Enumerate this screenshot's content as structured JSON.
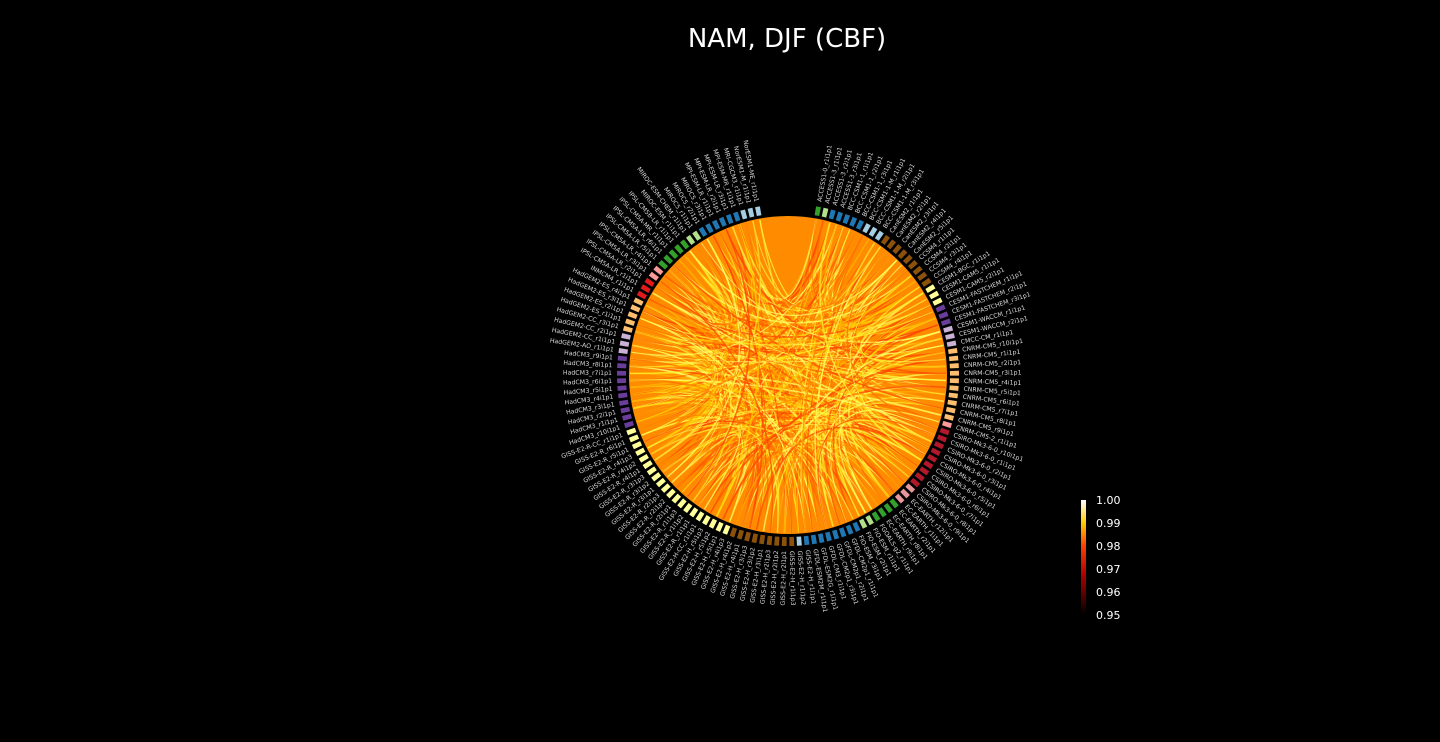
{
  "title": "NAM, DJF (CBF)",
  "chart_data": {
    "type": "chord",
    "title": "NAM, DJF (CBF)",
    "colorbar": {
      "min": 0.95,
      "max": 1.0,
      "ticks": [
        "1.00",
        "0.99",
        "0.98",
        "0.97",
        "0.96",
        "0.95"
      ],
      "colormap": "hot"
    },
    "groups": [
      {
        "color": "#33a02c",
        "members": [
          "ACCESS1-0_r1i1p1"
        ]
      },
      {
        "color": "#b2df8a",
        "members": [
          "ACCESS1-3_r1i1p1"
        ]
      },
      {
        "color": "#1f78b4",
        "members": [
          "ACCESS1-3_r2i1p1",
          "ACCESS1-3_r3i1p1",
          "BCC-CSM1-1_r1i1p1",
          "BCC-CSM1-1_r2i1p1",
          "BCC-CSM1-1_r3i1p1"
        ]
      },
      {
        "color": "#a6cee3",
        "members": [
          "BCC-CSM1-1-M_r1i1p1",
          "BCC-CSM1-1-M_r2i1p1",
          "BCC-CSM1-1-M_r3i1p1"
        ]
      },
      {
        "color": "#8c510a",
        "members": [
          "CanESM2_r1i1p1",
          "CanESM2_r2i1p1",
          "CanESM2_r3i1p1",
          "CanESM2_r4i1p1",
          "CanESM2_r5i1p1",
          "CCSM4_r1i1p1",
          "CCSM4_r2i1p1",
          "CCSM4_r3i1p1",
          "CCSM4_r4i1p1"
        ]
      },
      {
        "color": "#ffff99",
        "members": [
          "CESM1-BGC_r1i1p1",
          "CESM1-CAM5_r1i1p1",
          "CESM1-CAM5_r2i1p1"
        ]
      },
      {
        "color": "#6a3d9a",
        "members": [
          "CESM1-FASTCHEM_r1i1p1",
          "CESM1-FASTCHEM_r2i1p1",
          "CESM1-FASTCHEM_r3i1p1"
        ]
      },
      {
        "color": "#cab2d6",
        "members": [
          "CESM1-WACCM_r1i1p1",
          "CESM1-WACCM_r2i1p1",
          "CMCC-CM_r1i1p1"
        ]
      },
      {
        "color": "#fdbf6f",
        "members": [
          "CNRM-CM5_r10i1p1",
          "CNRM-CM5_r1i1p1",
          "CNRM-CM5_r2i1p1",
          "CNRM-CM5_r3i1p1",
          "CNRM-CM5_r4i1p1",
          "CNRM-CM5_r5i1p1",
          "CNRM-CM5_r6i1p1",
          "CNRM-CM5_r7i1p1",
          "CNRM-CM5_r8i1p1",
          "CNRM-CM5_r9i1p1"
        ]
      },
      {
        "color": "#fb9a99",
        "members": [
          "CNRM-CM5-2_r1i1p1"
        ]
      },
      {
        "color": "#b2182b",
        "members": [
          "CSIRO-Mk3-6-0_r10i1p1",
          "CSIRO-Mk3-6-0_r1i1p1",
          "CSIRO-Mk3-6-0_r2i1p1",
          "CSIRO-Mk3-6-0_r3i1p1",
          "CSIRO-Mk3-6-0_r4i1p1",
          "CSIRO-Mk3-6-0_r5i1p1",
          "CSIRO-Mk3-6-0_r6i1p1",
          "CSIRO-Mk3-6-0_r7i1p1",
          "CSIRO-Mk3-6-0_r8i1p1"
        ]
      },
      {
        "color": "#e7969c",
        "members": [
          "CSIRO-Mk3-6-0_r9i1p1",
          "EC-EARTH_r12i1p1",
          "EC-EARTH_r1i1p1"
        ]
      },
      {
        "color": "#33a02c",
        "members": [
          "EC-EARTH_r2i1p1",
          "EC-EARTH_r8i1p1",
          "EC-EARTH_r9i1p1",
          "FGOALS-g2_r1i1p1"
        ]
      },
      {
        "color": "#b2df8a",
        "members": [
          "FIO-ESM_r1i1p1",
          "FIO-ESM_r2i1p1"
        ]
      },
      {
        "color": "#1f78b4",
        "members": [
          "FIO-ESM_r3i1p1",
          "GFDL-CM2p1_r1i1p1",
          "GFDL-CM2p1_r2i1p1",
          "GFDL-CM2p1_r3i1p1",
          "GFDL-CM3_r1i1p1",
          "GFDL-ESM2G_r1i1p1",
          "GFDL-ESM2M_r1i1p1",
          "GISS-E2-H_r1i1p1"
        ]
      },
      {
        "color": "#a6cee3",
        "members": [
          "GISS-E2-H_r1i1p2"
        ]
      },
      {
        "color": "#8c510a",
        "members": [
          "GISS-E2-H_r1i1p3",
          "GISS-E2-H_r2i1p1",
          "GISS-E2-H_r2i1p2",
          "GISS-E2-H_r2i1p3",
          "GISS-E2-H_r3i1p1",
          "GISS-E2-H_r3i1p2",
          "GISS-E2-H_r3i1p3",
          "GISS-E2-H_r4i1p1",
          "GISS-E2-H_r4i1p2"
        ]
      },
      {
        "color": "#ffff99",
        "members": [
          "GISS-E2-H_r4i1p3",
          "GISS-E2-H_r5i1p1",
          "GISS-E2-H_r5i1p2",
          "GISS-E2-H_r5i1p3",
          "GISS-E2-H-CC_r1i1p1",
          "GISS-E2-R_r1i1p1",
          "GISS-E2-R_r1i1p2",
          "GISS-E2-R_r1i1p3",
          "GISS-E2-R_r2i1p1",
          "GISS-E2-R_r2i1p2",
          "GISS-E2-R_r2i1p3",
          "GISS-E2-R_r3i1p1",
          "GISS-E2-R_r3i1p2",
          "GISS-E2-R_r3i1p3",
          "GISS-E2-R_r4i1p1",
          "GISS-E2-R_r4i1p2",
          "GISS-E2-R_r4i1p3",
          "GISS-E2-R_r5i1p1",
          "GISS-E2-R_r6i1p1",
          "GISS-E2-R-CC_r1i1p1"
        ]
      },
      {
        "color": "#6a3d9a",
        "members": [
          "HadCM3_r10i1p1",
          "HadCM3_r1i1p1",
          "HadCM3_r2i1p1",
          "HadCM3_r3i1p1",
          "HadCM3_r4i1p1",
          "HadCM3_r5i1p1",
          "HadCM3_r6i1p1",
          "HadCM3_r7i1p1",
          "HadCM3_r8i1p1",
          "HadCM3_r9i1p1"
        ]
      },
      {
        "color": "#cab2d6",
        "members": [
          "HadGEM2-AO_r1i1p1",
          "HadGEM2-CC_r1i1p1",
          "HadGEM2-CC_r2i1p1"
        ]
      },
      {
        "color": "#fdbf6f",
        "members": [
          "HadGEM2-CC_r3i1p1",
          "HadGEM2-ES_r1i1p1",
          "HadGEM2-ES_r2i1p1",
          "HadGEM2-ES_r3i1p1",
          "HadGEM2-ES_r4i1p1"
        ]
      },
      {
        "color": "#e31a1c",
        "members": [
          "INMCM4_r1i1p1",
          "IPSL-CM5A-LR_r1i1p1",
          "IPSL-CM5A-LR_r2i1p1"
        ]
      },
      {
        "color": "#fb9a99",
        "members": [
          "IPSL-CM5A-LR_r3i1p1",
          "IPSL-CM5A-LR_r4i1p1"
        ]
      },
      {
        "color": "#33a02c",
        "members": [
          "IPSL-CM5A-LR_r5i1p1",
          "IPSL-CM5A-LR_r6i1p1",
          "IPSL-CM5A-MR_r1i1p1",
          "IPSL-CM5B-LR_r1i1p1",
          "MIROC-ESM_r1i1p1"
        ]
      },
      {
        "color": "#b2df8a",
        "members": [
          "MIROC-ESM-CHEM_r1i1p1",
          "MIROC5_r1i1p1"
        ]
      },
      {
        "color": "#1f78b4",
        "members": [
          "MIROC5_r2i1p1",
          "MIROC5_r3i1p1",
          "MPI-ESM-LR_r1i1p1",
          "MPI-ESM-LR_r2i1p1",
          "MPI-ESM-LR_r3i1p1",
          "MPI-ESM-MR_r1i1p1"
        ]
      },
      {
        "color": "#a6cee3",
        "members": [
          "MRI-CGCM3_r1i1p1",
          "NorESM1-M_r1i1p1",
          "NorESM1-ME_r1i1p1"
        ]
      }
    ]
  }
}
